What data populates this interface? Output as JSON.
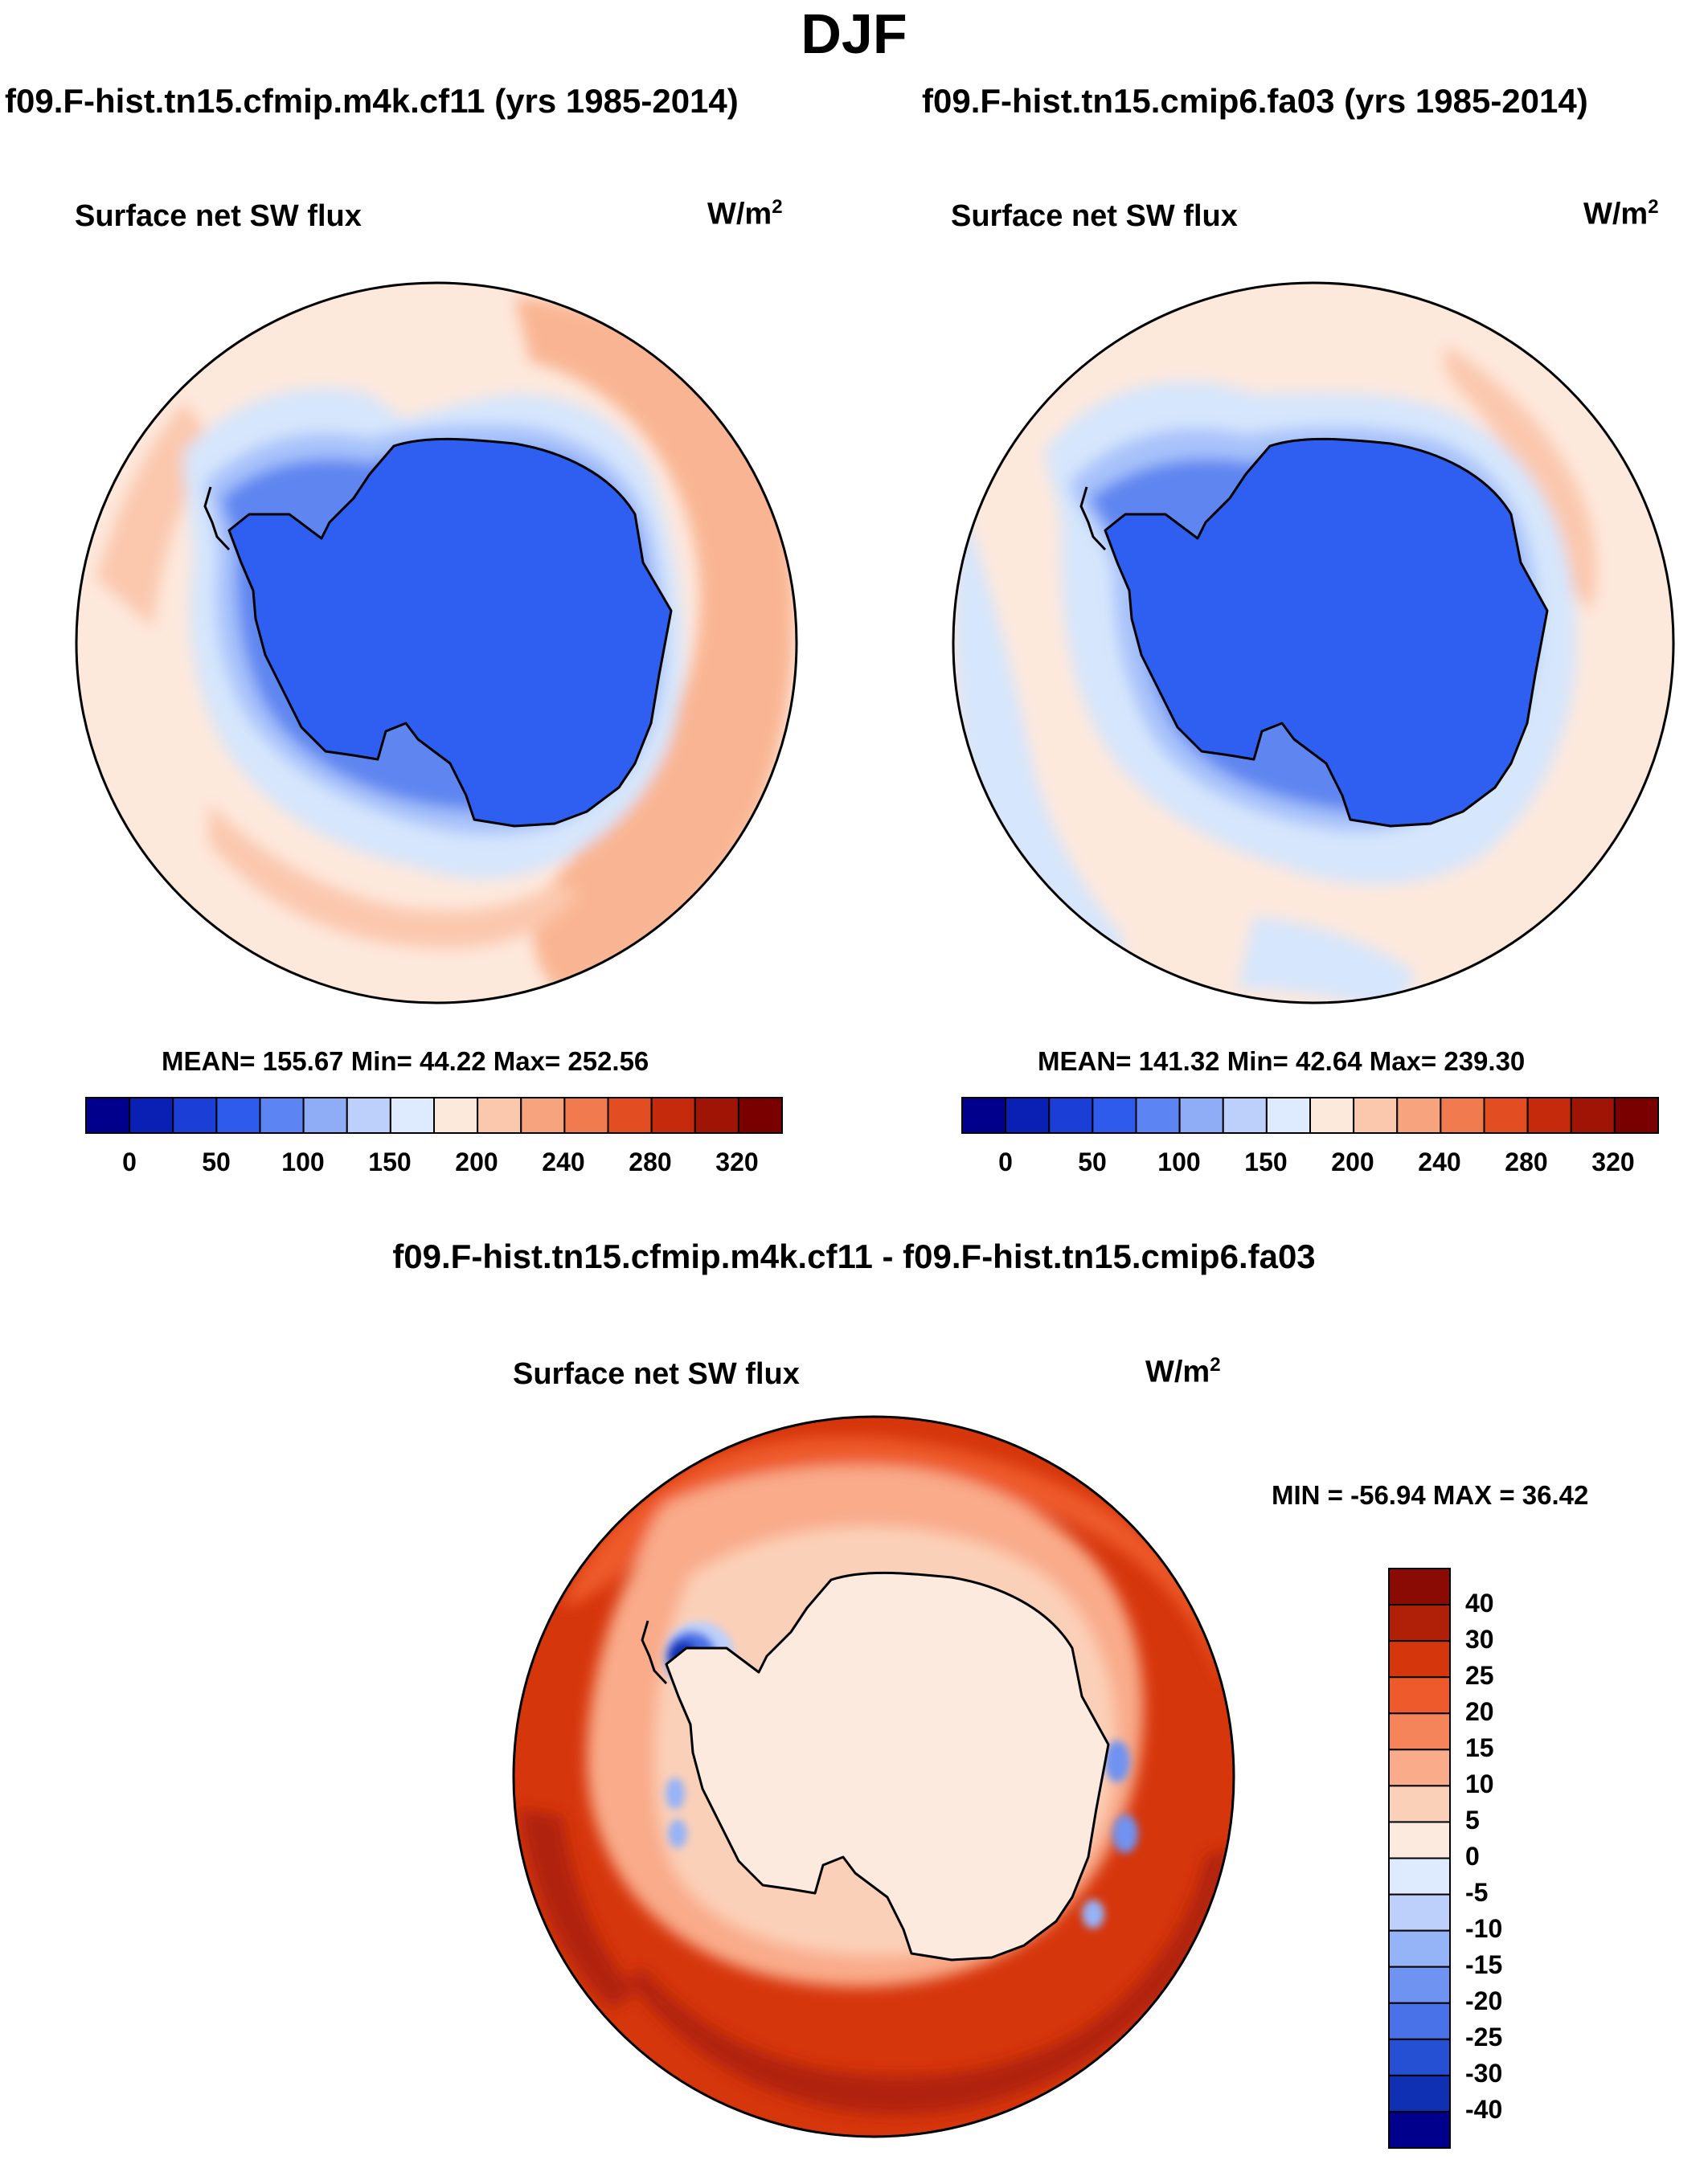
{
  "title": "DJF",
  "panels": [
    {
      "case": "f09.F-hist.tn15.cfmip.m4k.cf11 (yrs 1985-2014)",
      "variable": "Surface net SW flux",
      "units": "W/m",
      "units_exp": "2",
      "stats": "MEAN= 155.67  Min=  44.22  Max= 252.56"
    },
    {
      "case": "f09.F-hist.tn15.cmip6.fa03 (yrs 1985-2014)",
      "variable": "Surface net SW flux",
      "units": "W/m",
      "units_exp": "2",
      "stats": "MEAN= 141.32  Min=  42.64  Max= 239.30"
    }
  ],
  "difference": {
    "title": "f09.F-hist.tn15.cfmip.m4k.cf11 - f09.F-hist.tn15.cmip6.fa03",
    "variable": "Surface net SW flux",
    "units": "W/m",
    "units_exp": "2",
    "stats": "MIN = -56.94 MAX =  36.42"
  },
  "chart_data": [
    {
      "type": "heatmap",
      "projection": "south-polar-stereographic",
      "title": "f09.F-hist.tn15.cfmip.m4k.cf11 (yrs 1985-2014)",
      "variable": "Surface net SW flux",
      "units": "W/m2",
      "mean": 155.67,
      "min": 44.22,
      "max": 252.56,
      "colorbar": {
        "orientation": "horizontal",
        "tick_labels": [
          "0",
          "50",
          "100",
          "150",
          "200",
          "240",
          "280",
          "320"
        ],
        "colors": [
          "#00008c",
          "#0a1fb4",
          "#1a3ed6",
          "#2e5bec",
          "#5c84f2",
          "#8fadf7",
          "#bcd0fb",
          "#deeafd",
          "#fde8dc",
          "#fbc8ae",
          "#f7a37e",
          "#f17a4e",
          "#e34d22",
          "#c52a0c",
          "#a01406",
          "#7a0000"
        ]
      }
    },
    {
      "type": "heatmap",
      "projection": "south-polar-stereographic",
      "title": "f09.F-hist.tn15.cmip6.fa03 (yrs 1985-2014)",
      "variable": "Surface net SW flux",
      "units": "W/m2",
      "mean": 141.32,
      "min": 42.64,
      "max": 239.3,
      "colorbar": {
        "orientation": "horizontal",
        "tick_labels": [
          "0",
          "50",
          "100",
          "150",
          "200",
          "240",
          "280",
          "320"
        ],
        "colors": [
          "#00008c",
          "#0a1fb4",
          "#1a3ed6",
          "#2e5bec",
          "#5c84f2",
          "#8fadf7",
          "#bcd0fb",
          "#deeafd",
          "#fde8dc",
          "#fbc8ae",
          "#f7a37e",
          "#f17a4e",
          "#e34d22",
          "#c52a0c",
          "#a01406",
          "#7a0000"
        ]
      }
    },
    {
      "type": "heatmap",
      "projection": "south-polar-stereographic",
      "title": "f09.F-hist.tn15.cfmip.m4k.cf11 - f09.F-hist.tn15.cmip6.fa03",
      "variable": "Surface net SW flux",
      "units": "W/m2",
      "min": -56.94,
      "max": 36.42,
      "colorbar": {
        "orientation": "vertical",
        "tick_labels": [
          "40",
          "30",
          "25",
          "20",
          "15",
          "10",
          "5",
          "0",
          "-5",
          "-10",
          "-15",
          "-20",
          "-25",
          "-30",
          "-40"
        ],
        "colors": [
          "#8a0a04",
          "#b02008",
          "#d6360c",
          "#ee5a2c",
          "#f5845a",
          "#f9ab8a",
          "#fbd0b8",
          "#fdeadf",
          "#deeafd",
          "#bcd0fb",
          "#95b3f7",
          "#6f93f1",
          "#4a72e8",
          "#2650d4",
          "#1030b4",
          "#00008c"
        ]
      }
    }
  ]
}
